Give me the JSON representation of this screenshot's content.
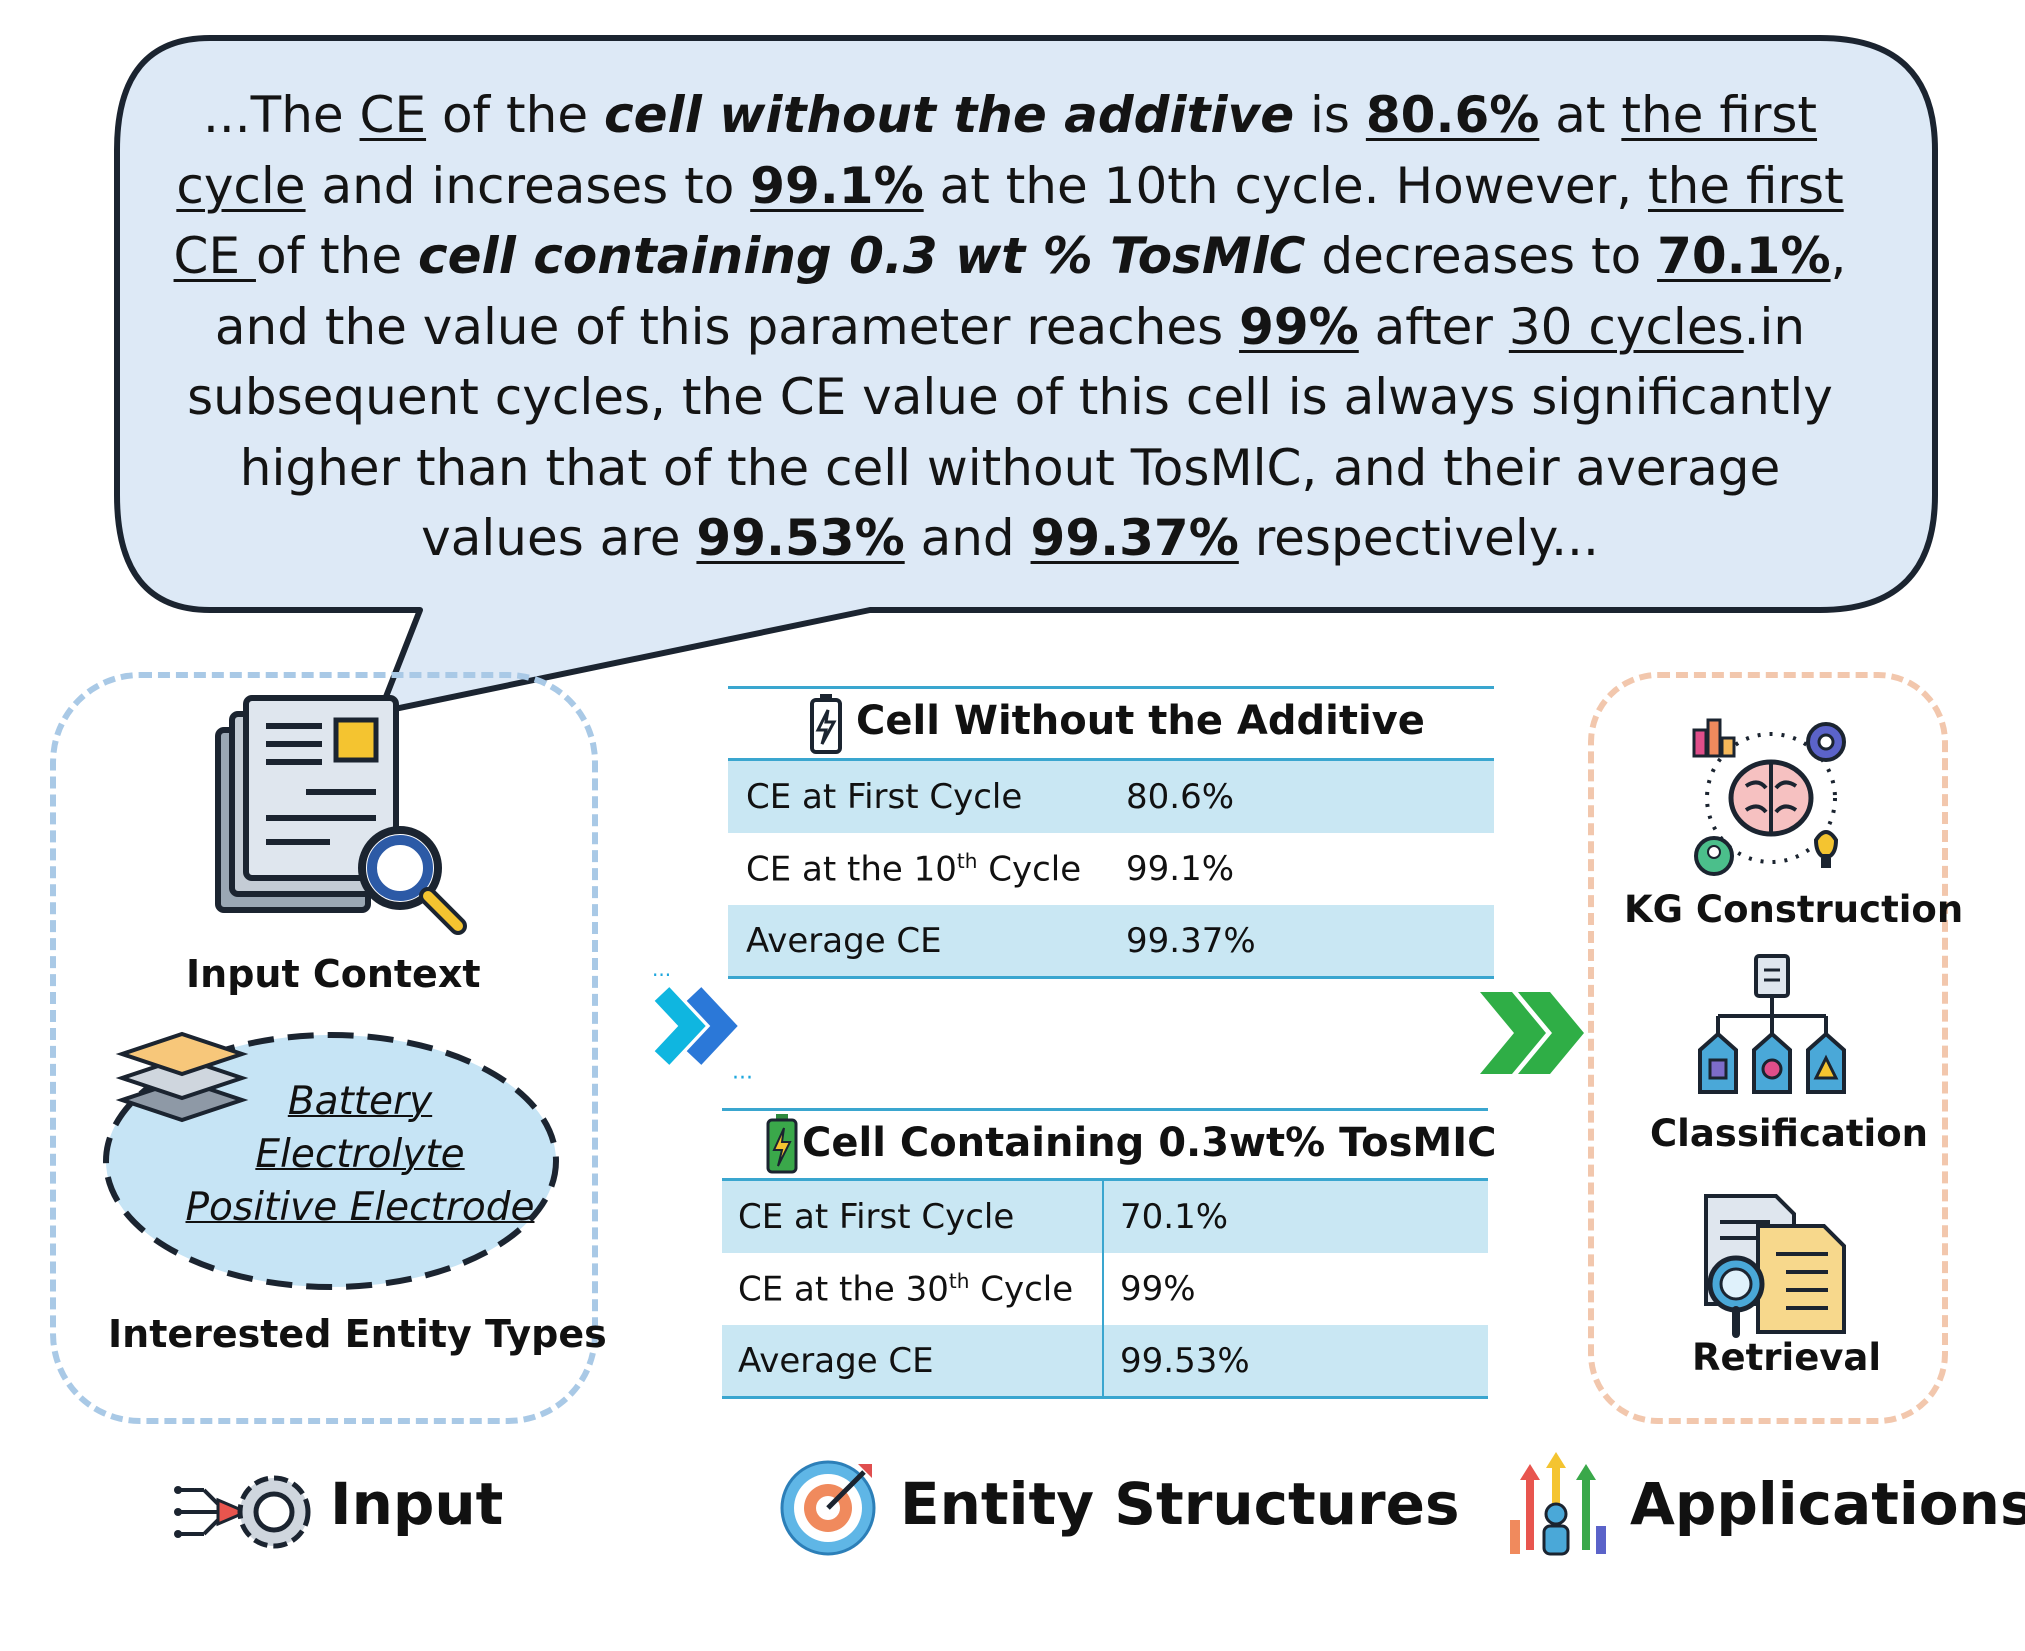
{
  "quote": {
    "lines": [
      [
        {
          "t": "...The "
        },
        {
          "t": "CE",
          "u": true
        },
        {
          "t": " of the "
        },
        {
          "t": "cell without the additive",
          "b": true,
          "i": true
        },
        {
          "t": " is "
        },
        {
          "t": "80.6%",
          "b": true,
          "u": true
        },
        {
          "t": " at "
        },
        {
          "t": "the first",
          "u": true
        }
      ],
      [
        {
          "t": "cycle",
          "u": true
        },
        {
          "t": " and increases to "
        },
        {
          "t": "99.1%",
          "b": true,
          "u": true
        },
        {
          "t": " at the 10th cycle. However, "
        },
        {
          "t": "the first",
          "u": true
        }
      ],
      [
        {
          "t": "CE ",
          "u": true
        },
        {
          "t": "of the "
        },
        {
          "t": "cell containing 0.3 wt % TosMlC",
          "b": true,
          "i": true
        },
        {
          "t": " decreases to "
        },
        {
          "t": "70.1%",
          "b": true,
          "u": true
        },
        {
          "t": ","
        }
      ],
      [
        {
          "t": "and the value of this parameter reaches "
        },
        {
          "t": "99%",
          "b": true,
          "u": true
        },
        {
          "t": " after "
        },
        {
          "t": "30 cycles",
          "u": true
        },
        {
          "t": ".in"
        }
      ],
      [
        {
          "t": "subsequent cycles, the CE value of this cell is always significantly"
        }
      ],
      [
        {
          "t": "higher than that of the cell without TosMlC, and their average"
        }
      ],
      [
        {
          "t": "values are "
        },
        {
          "t": "99.53%",
          "b": true,
          "u": true
        },
        {
          "t": " and "
        },
        {
          "t": "99.37%",
          "b": true,
          "u": true
        },
        {
          "t": " respectively..."
        }
      ]
    ]
  },
  "input": {
    "context_label": "Input Context",
    "entity_types": [
      "Battery",
      "Electrolyte",
      "Positive Electrode"
    ],
    "entity_types_label": "Interested Entity Types"
  },
  "table1": {
    "title": "Cell Without the Additive",
    "rows": [
      {
        "key": "CE at First Cycle",
        "value": "80.6%"
      },
      {
        "key_pre": "CE at the 10",
        "key_sup": "th",
        "key_post": " Cycle",
        "value": "99.1%"
      },
      {
        "key": "Average CE",
        "value": "99.37%"
      }
    ]
  },
  "table2": {
    "title": "Cell Containing 0.3wt% TosMIC",
    "rows": [
      {
        "key": "CE at First Cycle",
        "value": "70.1%"
      },
      {
        "key_pre": "CE at the 30",
        "key_sup": "th",
        "key_post": " Cycle",
        "value": "99%"
      },
      {
        "key": "Average CE",
        "value": "99.53%"
      }
    ]
  },
  "applications": {
    "items": [
      "KG Construction",
      "Classification",
      "Retrieval"
    ]
  },
  "footer": {
    "input": "Input",
    "entity_structures": "Entity Structures",
    "applications": "Applications"
  },
  "colors": {
    "bubble_fill": "#dde9f6",
    "bubble_stroke": "#1b2430",
    "table_shade": "#c9e7f3",
    "table_line": "#3aa6cf",
    "input_border": "#a9c9e6",
    "app_border": "#f2c7ad",
    "chevron_blue": "#1ea7dd",
    "chevron_green": "#2fae46"
  }
}
